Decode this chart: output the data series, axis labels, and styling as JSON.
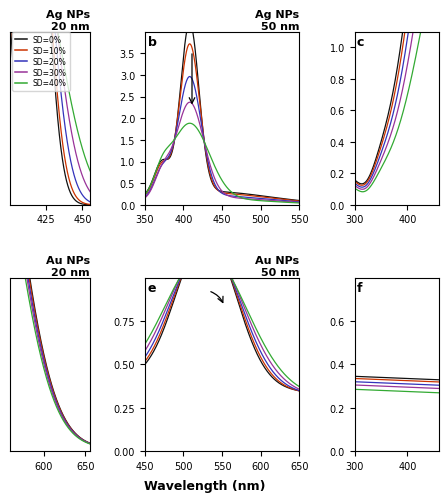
{
  "colors": {
    "SD0": "#111111",
    "SD10": "#cc3300",
    "SD20": "#3333bb",
    "SD30": "#993399",
    "SD40": "#33aa33"
  },
  "legend_labels": [
    "SD=0%",
    "SD=10%",
    "SD=20%",
    "SD=30%",
    "SD=40%"
  ],
  "xlabel": "Wavelength (nm)",
  "panel_a": {
    "title": "Ag NPs\n20 nm",
    "xlim": [
      400,
      455
    ],
    "xticks": [
      425,
      450
    ],
    "ylim": [
      0,
      0.12
    ]
  },
  "panel_b": {
    "title": "Ag NPs\n50 nm",
    "label": "b",
    "xlim": [
      350,
      550
    ],
    "xticks": [
      350,
      400,
      450,
      500,
      550
    ],
    "ylim": [
      0.0,
      4.0
    ],
    "yticks": [
      0.0,
      0.5,
      1.0,
      1.5,
      2.0,
      2.5,
      3.0,
      3.5
    ]
  },
  "panel_c": {
    "label": "c",
    "xlim": [
      300,
      460
    ],
    "xticks": [
      300,
      400
    ],
    "ylim": [
      0.0,
      1.1
    ],
    "yticks": [
      0.0,
      0.2,
      0.4,
      0.6,
      0.8,
      1.0
    ]
  },
  "panel_d": {
    "title": "Au NPs\n20 nm",
    "xlim": [
      560,
      655
    ],
    "xticks": [
      600,
      650
    ],
    "ylim": [
      0.0,
      0.3
    ]
  },
  "panel_e": {
    "title": "Au NPs\n50 nm",
    "label": "e",
    "xlim": [
      450,
      650
    ],
    "xticks": [
      450,
      500,
      550,
      600,
      650
    ],
    "ylim": [
      0.0,
      1.0
    ],
    "yticks": [
      0.0,
      0.25,
      0.5,
      0.75
    ]
  },
  "panel_f": {
    "label": "f",
    "xlim": [
      300,
      460
    ],
    "xticks": [
      300,
      400
    ],
    "ylim": [
      0.0,
      0.8
    ],
    "yticks": [
      0.0,
      0.2,
      0.4,
      0.6
    ]
  }
}
